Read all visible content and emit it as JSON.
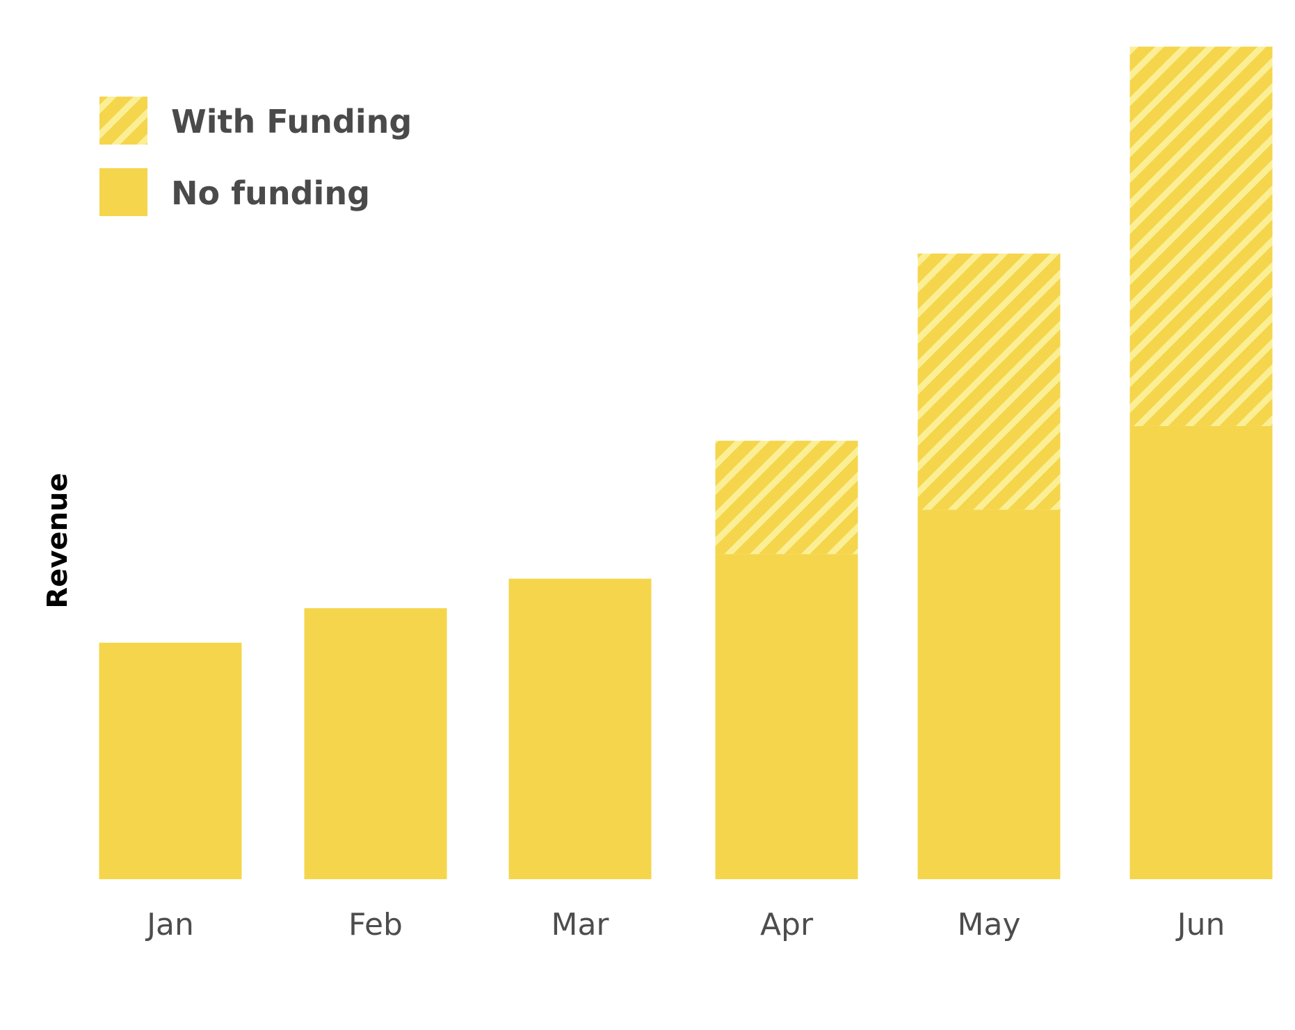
{
  "chart_data": {
    "type": "bar",
    "stacked": true,
    "categories": [
      "Jan",
      "Feb",
      "Mar",
      "Apr",
      "May",
      "Jun"
    ],
    "series": [
      {
        "name": "No funding",
        "values": [
          24,
          27.5,
          30.5,
          33,
          37.5,
          46
        ],
        "pattern": "solid"
      },
      {
        "name": "With Funding",
        "values": [
          0,
          0,
          0,
          11.5,
          26,
          38.5
        ],
        "pattern": "hatched"
      }
    ],
    "title": "",
    "xlabel": "",
    "ylabel": "Revenue",
    "ylim": [
      0,
      85
    ],
    "grid": false,
    "y_ticks_visible": false,
    "legend": {
      "position": "top-left",
      "entries": [
        {
          "label": "With Funding",
          "pattern": "hatched"
        },
        {
          "label": "No funding",
          "pattern": "solid"
        }
      ]
    }
  },
  "colors": {
    "bar_solid": "#f5d54b",
    "hatch_light": "#fbef96",
    "legend_text": "#4a4a4a",
    "tick_text": "#4d4d4d",
    "axis_label": "#000000"
  }
}
